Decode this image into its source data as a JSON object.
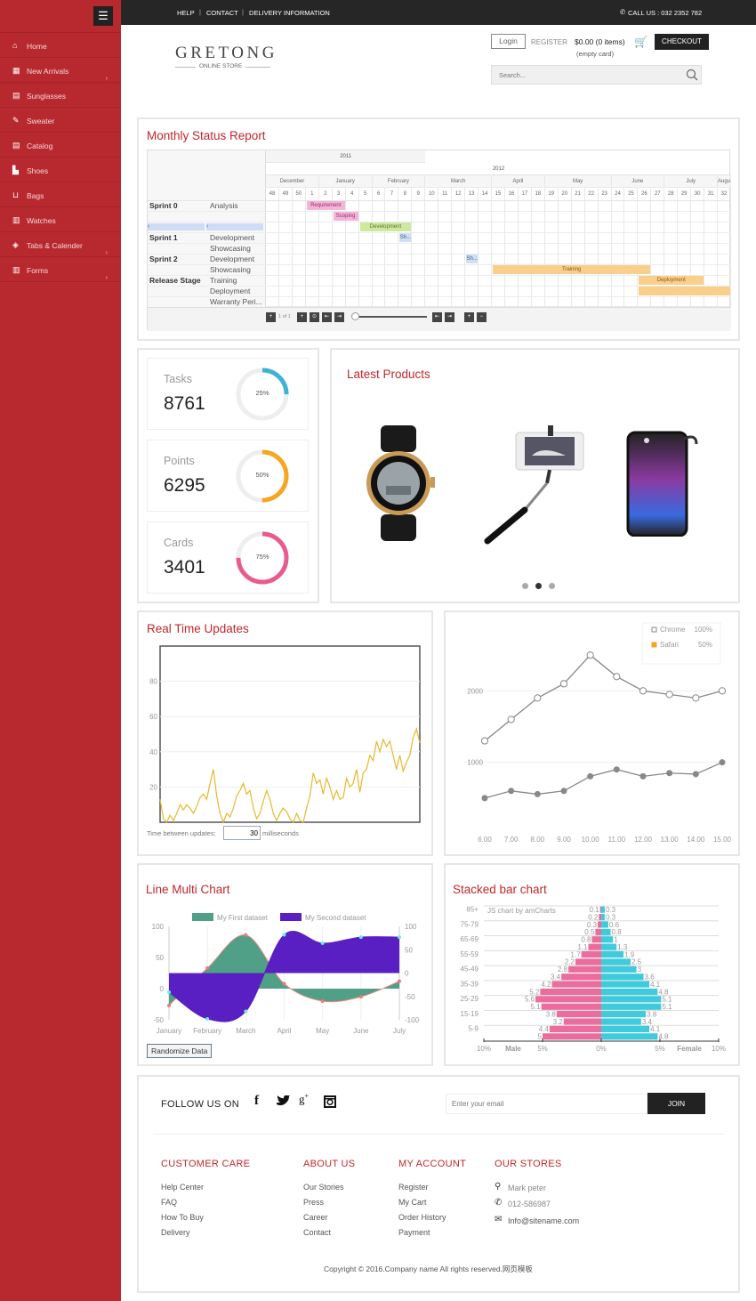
{
  "colors": {
    "brand": "#b8292f",
    "title": "#c0272d"
  },
  "sidebar": {
    "menu_icon": "hamburger-icon",
    "items": [
      {
        "label": "Home",
        "icon": "dashboard-icon",
        "has_children": false
      },
      {
        "label": "New Arrivals",
        "icon": "table-icon",
        "has_children": true
      },
      {
        "label": "Sunglasses",
        "icon": "file-icon",
        "has_children": false
      },
      {
        "label": "Sweater",
        "icon": "pencil-icon",
        "has_children": false
      },
      {
        "label": "Catalog",
        "icon": "file-icon",
        "has_children": false
      },
      {
        "label": "Shoes",
        "icon": "shoe-icon",
        "has_children": false
      },
      {
        "label": "Bags",
        "icon": "bag-icon",
        "has_children": false
      },
      {
        "label": "Watches",
        "icon": "chart-icon",
        "has_children": false
      },
      {
        "label": "Tabs & Calender",
        "icon": "layers-icon",
        "has_children": true
      },
      {
        "label": "Forms",
        "icon": "chart-icon",
        "has_children": true
      }
    ]
  },
  "topbar": {
    "links": [
      "HELP",
      "CONTACT",
      "DELIVERY INFORMATION"
    ],
    "call": "CALL US : 032 2352 782"
  },
  "header": {
    "logo": "GRETONG",
    "logo_sub": "ONLINE STORE",
    "login": "Login",
    "register": "REGISTER",
    "cart_total": "$0.00 (0 items)",
    "cart_note": "(empty card)",
    "checkout": "CHECKOUT",
    "search_placeholder": "Search..."
  },
  "gantt": {
    "title": "Monthly Status Report",
    "years": [
      {
        "label": "2011"
      },
      {
        "label": "2012"
      }
    ],
    "months": [
      {
        "label": "December",
        "weeks": 4
      },
      {
        "label": "January",
        "weeks": 4
      },
      {
        "label": "February",
        "weeks": 4
      },
      {
        "label": "March",
        "weeks": 5
      },
      {
        "label": "April",
        "weeks": 4
      },
      {
        "label": "May",
        "weeks": 5
      },
      {
        "label": "June",
        "weeks": 4
      },
      {
        "label": "July",
        "weeks": 4
      },
      {
        "label": "Augu",
        "weeks": 1
      }
    ],
    "weeks": [
      "48",
      "49",
      "50",
      "1",
      "2",
      "3",
      "4",
      "5",
      "6",
      "7",
      "8",
      "9",
      "10",
      "11",
      "12",
      "13",
      "14",
      "15",
      "16",
      "17",
      "18",
      "19",
      "20",
      "21",
      "22",
      "23",
      "24",
      "25",
      "26",
      "27",
      "28",
      "29",
      "30",
      "31",
      "32"
    ],
    "rows": [
      {
        "group": "Sprint 0",
        "task": "Analysis"
      },
      {
        "group": "",
        "task": ""
      },
      {
        "group": "",
        "task": "",
        "scroll": true
      },
      {
        "group": "Sprint 1",
        "task": "Development"
      },
      {
        "group": "",
        "task": "Showcasing"
      },
      {
        "group": "Sprint 2",
        "task": "Development"
      },
      {
        "group": "",
        "task": "Showcasing"
      },
      {
        "group": "Release Stage",
        "task": "Training"
      },
      {
        "group": "",
        "task": "Deployment"
      },
      {
        "group": "",
        "task": "Warranty Peri..."
      }
    ],
    "bars": [
      {
        "row": 0,
        "label": "Requirement Gathering",
        "from": "1",
        "to": "3",
        "color": "#f2b6d8",
        "text": "#a0286c"
      },
      {
        "row": 1,
        "label": "Scoping",
        "from": "3",
        "to": "4",
        "color": "#f2b6d8",
        "text": "#a0286c"
      },
      {
        "row": 2,
        "label": "Development",
        "from": "5",
        "to": "8",
        "color": "#cfe8a0",
        "text": "#5a7a20"
      },
      {
        "row": 3,
        "label": "Sh...",
        "from": "8",
        "to": "8",
        "color": "#cfe0f5",
        "text": "#3a5a8a"
      },
      {
        "row": 5,
        "label": "Sh...",
        "from": "13",
        "to": "13",
        "color": "#cfe0f5",
        "text": "#3a5a8a"
      },
      {
        "row": 6,
        "label": "Training",
        "from": "15",
        "to": "26",
        "color": "#f9cf8b",
        "text": "#8a5a10"
      },
      {
        "row": 7,
        "label": "Deployment",
        "from": "26",
        "to": "30",
        "color": "#f9cf8b",
        "text": "#8a5a10"
      },
      {
        "row": 8,
        "label": "",
        "from": "26",
        "to": "32",
        "color": "#f9cf8b",
        "text": "#8a5a10"
      }
    ],
    "pager": "1 of 1"
  },
  "stats": [
    {
      "label": "Tasks",
      "value": "8761",
      "percent": 25,
      "pct_label": "25%",
      "color": "#3fb3d6"
    },
    {
      "label": "Points",
      "value": "6295",
      "percent": 50,
      "pct_label": "50%",
      "color": "#f5a623"
    },
    {
      "label": "Cards",
      "value": "3401",
      "percent": 75,
      "pct_label": "75%",
      "color": "#ea5a8e"
    }
  ],
  "products": {
    "title": "Latest Products",
    "items": [
      {
        "icon": "watch-icon"
      },
      {
        "icon": "selfie-stick-icon"
      },
      {
        "icon": "speaker-icon"
      }
    ],
    "dots": 3,
    "active_dot": 1
  },
  "realtime": {
    "title": "Real Time Updates",
    "interval_label": "Time between updates:",
    "interval_value": "30",
    "unit": "milliseconds"
  },
  "footer": {
    "follow": "FOLLOW US ON",
    "social": [
      "facebook-icon",
      "twitter-icon",
      "google-plus-icon",
      "instagram-icon"
    ],
    "email_placeholder": "Enter your email",
    "join": "JOIN",
    "columns": [
      {
        "title": "CUSTOMER CARE",
        "links": [
          "Help Center",
          "FAQ",
          "How To Buy",
          "Delivery"
        ]
      },
      {
        "title": "ABOUT US",
        "links": [
          "Our Stories",
          "Press",
          "Career",
          "Contact"
        ]
      },
      {
        "title": "MY ACCOUNT",
        "links": [
          "Register",
          "My Cart",
          "Order History",
          "Payment"
        ]
      }
    ],
    "stores": {
      "title": "OUR STORES",
      "name": "Mark peter",
      "phone": "012-586987",
      "email": "Info@sitename.com"
    },
    "copyright": "Copyright © 2016.Company name All rights reserved.网页模板"
  },
  "chart_data": [
    {
      "type": "line",
      "title": "Real Time Updates",
      "ylim": [
        0,
        100
      ],
      "yticks": [
        20,
        40,
        60,
        80
      ],
      "grid": true,
      "color": "#e8b830",
      "values": [
        13,
        2,
        0,
        4,
        1,
        5,
        10,
        7,
        10,
        8,
        5,
        9,
        14,
        16,
        13,
        22,
        30,
        15,
        5,
        0,
        5,
        3,
        8,
        15,
        18,
        22,
        16,
        18,
        8,
        2,
        5,
        12,
        18,
        13,
        5,
        1,
        5,
        8,
        6,
        2,
        0,
        5,
        1,
        0,
        8,
        15,
        28,
        22,
        24,
        16,
        25,
        20,
        13,
        18,
        13,
        14,
        25,
        20,
        22,
        30,
        17,
        28,
        30,
        38,
        35,
        46,
        40,
        47,
        43,
        46,
        38,
        30,
        38,
        29,
        34,
        38,
        48,
        53,
        45
      ]
    },
    {
      "type": "line",
      "x": [
        "6.00",
        "7.00",
        "8.00",
        "9.00",
        "10.00",
        "11.00",
        "12.00",
        "13.00",
        "14.00",
        "15.00"
      ],
      "ylim": [
        0,
        3100
      ],
      "yticks": [
        1000,
        2000
      ],
      "grid": true,
      "legend": "top-right",
      "series": [
        {
          "name": "Chrome",
          "legend_value": "100%",
          "color": "#888",
          "marker": "open",
          "values": [
            1300,
            1600,
            1900,
            2100,
            2500,
            2200,
            2000,
            1950,
            1900,
            2000
          ]
        },
        {
          "name": "Safari",
          "legend_value": "50%",
          "color": "#f5a623",
          "marker": "filled",
          "values": [
            500,
            600,
            555,
            600,
            805,
            900,
            805,
            850,
            835,
            1000
          ]
        }
      ]
    },
    {
      "type": "area",
      "title": "Line Multi Chart",
      "categories": [
        "January",
        "February",
        "March",
        "April",
        "May",
        "June",
        "July"
      ],
      "legend": "top",
      "y_left": {
        "ylim": [
          -50,
          100
        ],
        "ticks": [
          -50,
          0,
          50,
          100
        ]
      },
      "y_right": {
        "ylim": [
          -100,
          100
        ],
        "ticks": [
          -100,
          -50,
          0,
          50,
          100
        ]
      },
      "series": [
        {
          "name": "My First dataset",
          "axis": "left",
          "color": "#4fa087",
          "values": [
            -27,
            33,
            86,
            8,
            -20,
            -13,
            12
          ]
        },
        {
          "name": "My Second dataset",
          "axis": "right",
          "color": "#5a1fc2",
          "values": [
            -41,
            -98,
            -82,
            82,
            64,
            77,
            77
          ]
        }
      ],
      "button": "Randomize Data"
    },
    {
      "type": "bar",
      "title": "Stacked bar chart",
      "credit": "JS chart by amCharts",
      "orientation": "horizontal",
      "categories": [
        "85+",
        "80-84",
        "75-79",
        "70-74",
        "65-69",
        "60-64",
        "55-59",
        "50-54",
        "45-49",
        "40-44",
        "35-39",
        "30-34",
        "25-29",
        "20-24",
        "15-19",
        "10-14",
        "5-9",
        "0-4"
      ],
      "shown_category_labels": [
        "85+",
        "75-79",
        "65-69",
        "55-59",
        "45-49",
        "35-39",
        "25-29",
        "15-19",
        "5-9"
      ],
      "xlim": [
        -10,
        10
      ],
      "xticks": [
        "10%",
        "5%",
        "0%",
        "5%",
        "10%"
      ],
      "series": [
        {
          "name": "Male",
          "color": "#ea6d9e",
          "values": [
            0.1,
            0.2,
            0.3,
            0.5,
            0.8,
            1.1,
            1.7,
            2.2,
            2.8,
            3.4,
            4.2,
            5.2,
            5.6,
            5.1,
            3.8,
            3.2,
            4.4,
            5
          ]
        },
        {
          "name": "Female",
          "color": "#3fcbdc",
          "values": [
            0.3,
            0.3,
            0.6,
            0.8,
            1,
            1.3,
            1.9,
            2.5,
            3,
            3.6,
            4.1,
            4.8,
            5.1,
            5.1,
            3.8,
            3.4,
            4.1,
            4.8
          ]
        }
      ]
    }
  ]
}
